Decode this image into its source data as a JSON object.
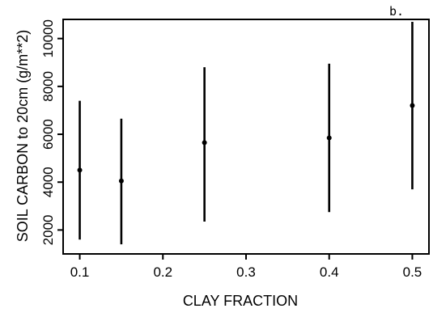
{
  "chart_data": {
    "type": "scatter",
    "panel_label": "b.",
    "xlabel": "CLAY FRACTION",
    "ylabel": "SOIL CARBON to 20cm (g/m**2)",
    "xlim": [
      0.08,
      0.52
    ],
    "ylim": [
      1000,
      10800
    ],
    "x_ticks": [
      0.1,
      0.2,
      0.3,
      0.4,
      0.5
    ],
    "x_tick_labels": [
      "0.1",
      "0.2",
      "0.3",
      "0.4",
      "0.5"
    ],
    "y_ticks": [
      2000,
      4000,
      6000,
      8000,
      10000
    ],
    "y_tick_labels": [
      "2000",
      "4000",
      "6000",
      "8000",
      "10000"
    ],
    "grid": false,
    "legend": "none",
    "series": [
      {
        "points": [
          {
            "x": 0.1,
            "y": 4500,
            "y_low": 1600,
            "y_high": 7400
          },
          {
            "x": 0.15,
            "y": 4050,
            "y_low": 1400,
            "y_high": 6650
          },
          {
            "x": 0.25,
            "y": 5650,
            "y_low": 2350,
            "y_high": 8800
          },
          {
            "x": 0.4,
            "y": 5850,
            "y_low": 2750,
            "y_high": 8950
          },
          {
            "x": 0.5,
            "y": 7200,
            "y_low": 3700,
            "y_high": 10700
          }
        ]
      }
    ]
  }
}
